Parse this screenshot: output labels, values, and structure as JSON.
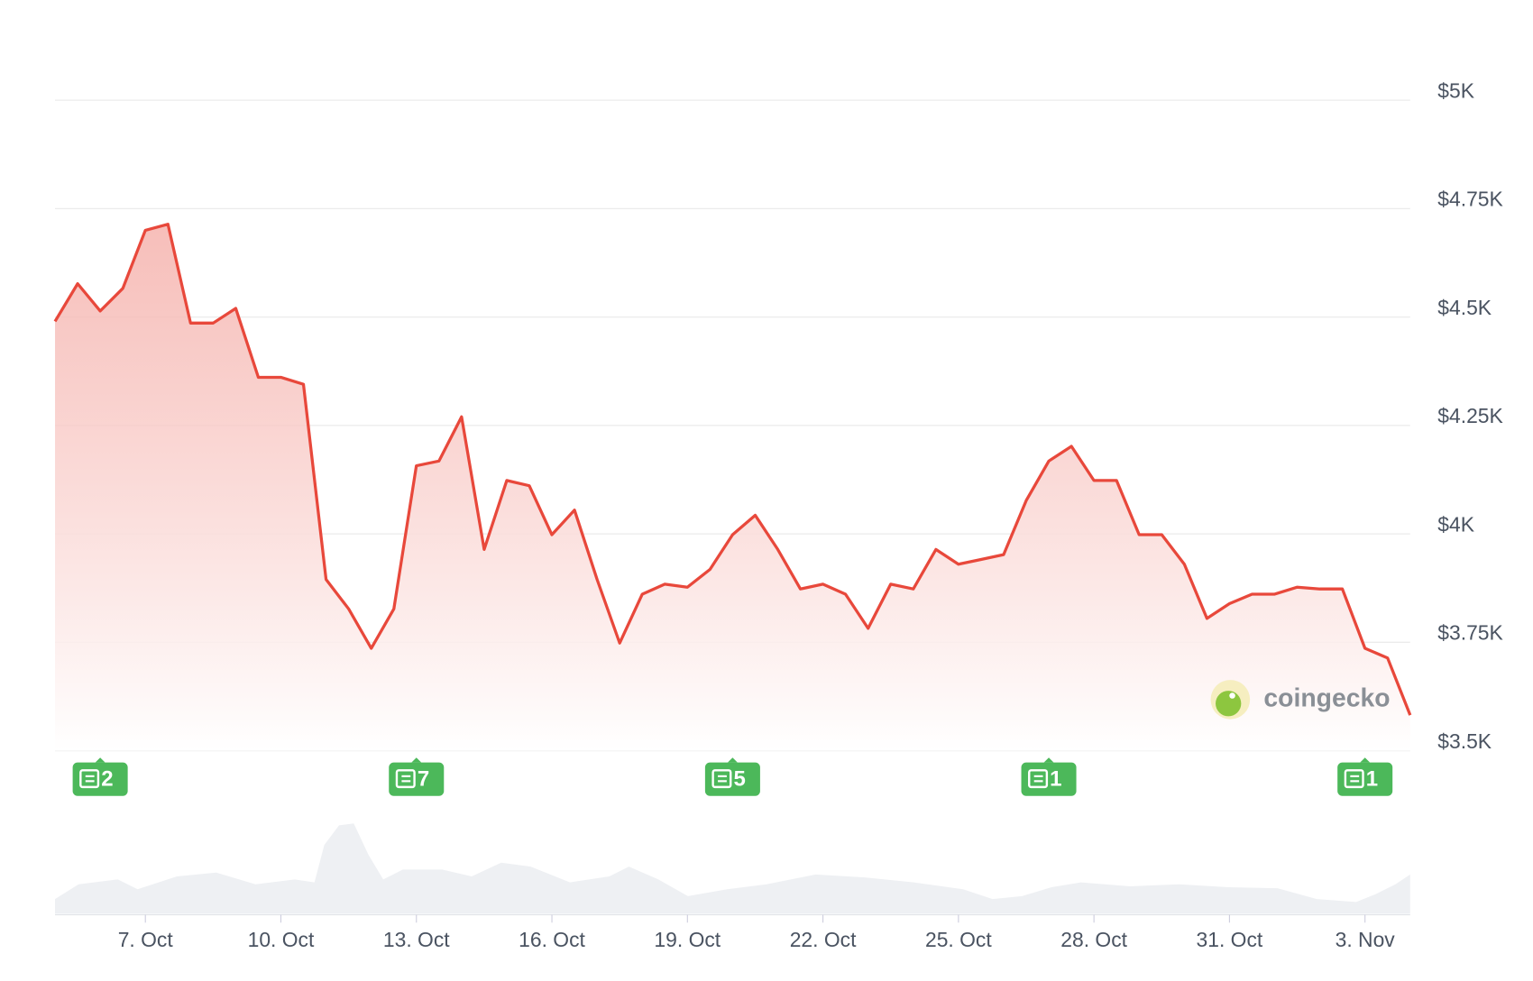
{
  "chart_data": {
    "type": "line",
    "categories": [
      null,
      null,
      null,
      null,
      "7. Oct",
      null,
      null,
      null,
      null,
      null,
      "10. Oct",
      null,
      null,
      null,
      null,
      null,
      "13. Oct",
      null,
      null,
      null,
      null,
      null,
      "16. Oct",
      null,
      null,
      null,
      null,
      null,
      "19. Oct",
      null,
      null,
      null,
      null,
      null,
      "22. Oct",
      null,
      null,
      null,
      null,
      null,
      "25. Oct",
      null,
      null,
      null,
      null,
      null,
      "28. Oct",
      null,
      null,
      null,
      null,
      null,
      "31. Oct",
      null,
      null,
      null,
      null,
      null,
      "3. Nov",
      null,
      null
    ],
    "values": [
      4490,
      4577,
      4514,
      4566,
      4700,
      4714,
      4486,
      4486,
      4520,
      4361,
      4361,
      4345,
      3895,
      3827,
      3736,
      3827,
      4157,
      4168,
      4270,
      3964,
      4123,
      4111,
      3998,
      4055,
      3895,
      3748,
      3861,
      3884,
      3877,
      3918,
      3998,
      4043,
      3964,
      3873,
      3884,
      3861,
      3782,
      3884,
      3873,
      3964,
      3930,
      3941,
      3952,
      4077,
      4168,
      4202,
      4123,
      4123,
      3998,
      3998,
      3930,
      3805,
      3839,
      3861,
      3861,
      3877,
      3873,
      3873,
      3736,
      3714,
      3582
    ],
    "color": "#e8483b",
    "ylim": [
      3500,
      5000
    ],
    "yticks": [
      {
        "value": 3500,
        "label": "$3.5K"
      },
      {
        "value": 3750,
        "label": "$3.75K"
      },
      {
        "value": 4000,
        "label": "$4K"
      },
      {
        "value": 4250,
        "label": "$4.25K"
      },
      {
        "value": 4500,
        "label": "$4.5K"
      },
      {
        "value": 4750,
        "label": "$4.75K"
      },
      {
        "value": 5000,
        "label": "$5K"
      }
    ],
    "grid": true,
    "news_counts": [
      2,
      7,
      5,
      1,
      1
    ],
    "watermark": "coingecko"
  }
}
